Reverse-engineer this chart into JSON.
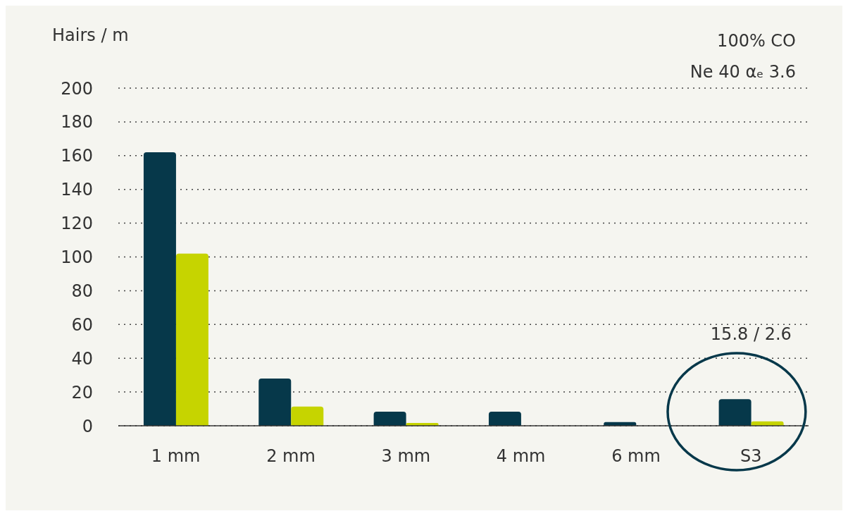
{
  "chart_data": {
    "type": "bar",
    "title": "100% CO",
    "subtitle": "Ne 40 αₑ 3.6",
    "ylabel": "Hairs / m",
    "categories": [
      "1 mm",
      "2 mm",
      "3 mm",
      "4 mm",
      "6 mm",
      "S3"
    ],
    "series": [
      {
        "color": "#06384a",
        "values": [
          162,
          28,
          8.3,
          8.3,
          2.2,
          15.8
        ]
      },
      {
        "color": "#c6d400",
        "values": [
          102,
          11.4,
          1.7,
          0,
          0,
          2.6
        ]
      }
    ],
    "ylim": [
      0,
      200
    ],
    "yticks": [
      0,
      20,
      40,
      60,
      80,
      100,
      120,
      140,
      160,
      180,
      200
    ],
    "grid": "y",
    "annotations": [
      "15.8 / 2.6"
    ]
  }
}
